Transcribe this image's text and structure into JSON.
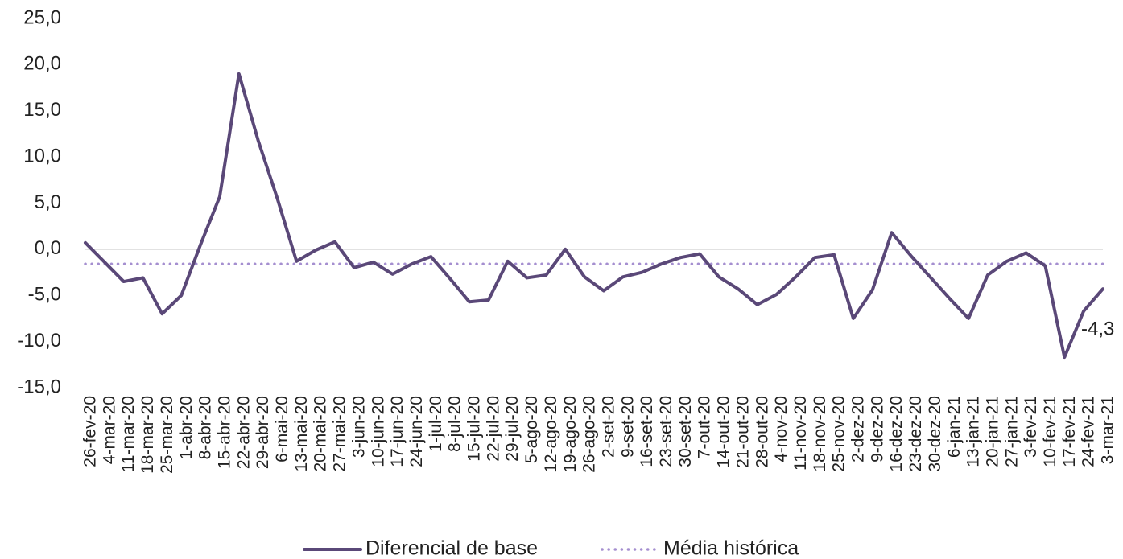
{
  "chart_data": {
    "type": "line",
    "categories": [
      "26-fev-20",
      "4-mar-20",
      "11-mar-20",
      "18-mar-20",
      "25-mar-20",
      "1-abr-20",
      "8-abr-20",
      "15-abr-20",
      "22-abr-20",
      "29-abr-20",
      "6-mai-20",
      "13-mai-20",
      "20-mai-20",
      "27-mai-20",
      "3-jun-20",
      "10-jun-20",
      "17-jun-20",
      "24-jun-20",
      "1-jul-20",
      "8-jul-20",
      "15-jul-20",
      "22-jul-20",
      "29-jul-20",
      "5-ago-20",
      "12-ago-20",
      "19-ago-20",
      "26-ago-20",
      "2-set-20",
      "9-set-20",
      "16-set-20",
      "23-set-20",
      "30-set-20",
      "7-out-20",
      "14-out-20",
      "21-out-20",
      "28-out-20",
      "4-nov-20",
      "11-nov-20",
      "18-nov-20",
      "25-nov-20",
      "2-dez-20",
      "9-dez-20",
      "16-dez-20",
      "23-dez-20",
      "30-dez-20",
      "6-jan-21",
      "13-jan-21",
      "20-jan-21",
      "27-jan-21",
      "3-fev-21",
      "10-fev-21",
      "17-fev-21",
      "24-fev-21",
      "3-mar-21"
    ],
    "series": [
      {
        "name": "Diferencial de base",
        "color": "#5a4878",
        "style": "solid",
        "values": [
          0.7,
          -1.4,
          -3.5,
          -3.1,
          -7.0,
          -5.0,
          0.5,
          5.7,
          19.0,
          11.8,
          5.5,
          -1.3,
          -0.1,
          0.8,
          -2.0,
          -1.4,
          -2.7,
          -1.6,
          -0.8,
          -3.2,
          -5.7,
          -5.5,
          -1.3,
          -3.1,
          -2.8,
          0.0,
          -3.0,
          -4.5,
          -3.0,
          -2.5,
          -1.6,
          -0.9,
          -0.5,
          -3.0,
          -4.3,
          -6.0,
          -4.9,
          -3.0,
          -0.9,
          -0.6,
          -7.5,
          -4.4,
          1.8,
          -0.7,
          -3.0,
          -5.3,
          -7.5,
          -2.8,
          -1.3,
          -0.4,
          -1.8,
          -11.7,
          -6.7,
          -4.3
        ],
        "value_labels": [
          null,
          null,
          null,
          null,
          null,
          null,
          null,
          null,
          null,
          null,
          null,
          null,
          null,
          null,
          null,
          null,
          null,
          null,
          null,
          null,
          null,
          null,
          null,
          null,
          null,
          null,
          null,
          null,
          null,
          null,
          null,
          null,
          null,
          null,
          null,
          null,
          null,
          null,
          null,
          null,
          null,
          null,
          null,
          null,
          null,
          null,
          null,
          null,
          null,
          null,
          null,
          null,
          null,
          "-4,3"
        ]
      },
      {
        "name": "Média histórica",
        "color": "#a58fd0",
        "style": "dotted",
        "values": [
          -1.6,
          -1.6,
          -1.6,
          -1.6,
          -1.6,
          -1.6,
          -1.6,
          -1.6,
          -1.6,
          -1.6,
          -1.6,
          -1.6,
          -1.6,
          -1.6,
          -1.6,
          -1.6,
          -1.6,
          -1.6,
          -1.6,
          -1.6,
          -1.6,
          -1.6,
          -1.6,
          -1.6,
          -1.6,
          -1.6,
          -1.6,
          -1.6,
          -1.6,
          -1.6,
          -1.6,
          -1.6,
          -1.6,
          -1.6,
          -1.6,
          -1.6,
          -1.6,
          -1.6,
          -1.6,
          -1.6,
          -1.6,
          -1.6,
          -1.6,
          -1.6,
          -1.6,
          -1.6,
          -1.6,
          -1.6,
          -1.6,
          -1.6,
          -1.6,
          -1.6,
          -1.6,
          -1.6
        ]
      }
    ],
    "ylim": [
      -15,
      25
    ],
    "yticks": [
      {
        "value": -15,
        "label": "-15,0"
      },
      {
        "value": -10,
        "label": "-10,0"
      },
      {
        "value": -5,
        "label": "-5,0"
      },
      {
        "value": 0,
        "label": "0,0"
      },
      {
        "value": 5,
        "label": "5,0"
      },
      {
        "value": 10,
        "label": "10,0"
      },
      {
        "value": 15,
        "label": "15,0"
      },
      {
        "value": 20,
        "label": "20,0"
      },
      {
        "value": 25,
        "label": "25,0"
      }
    ],
    "zero_line": true,
    "legend": "bottom"
  }
}
